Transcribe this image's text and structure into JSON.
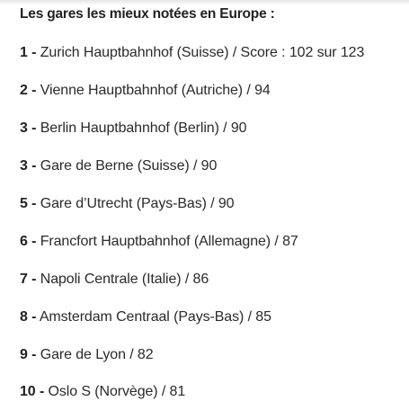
{
  "heading": "Les gares les mieux notées en Europe :",
  "rankings": [
    {
      "rank": "1 -",
      "text": "Zurich Hauptbahnhof (Suisse) / Score : 102 sur 123"
    },
    {
      "rank": "2 -",
      "text": "Vienne Hauptbahnhof (Autriche) / 94"
    },
    {
      "rank": "3 -",
      "text": "Berlin Hauptbahnhof (Berlin) / 90"
    },
    {
      "rank": "3 -",
      "text": "Gare de Berne (Suisse) / 90"
    },
    {
      "rank": "5 -",
      "text": "Gare d’Utrecht (Pays-Bas) / 90"
    },
    {
      "rank": "6 -",
      "text": "Francfort Hauptbahnhof (Allemagne) / 87"
    },
    {
      "rank": "7 -",
      "text": "Napoli Centrale (Italie) / 86"
    },
    {
      "rank": "8 -",
      "text": "Amsterdam Centraal (Pays-Bas) / 85"
    },
    {
      "rank": "9 -",
      "text": "Gare de Lyon / 82"
    },
    {
      "rank": "10 -",
      "text": "Oslo S (Norvège) / 81"
    }
  ]
}
